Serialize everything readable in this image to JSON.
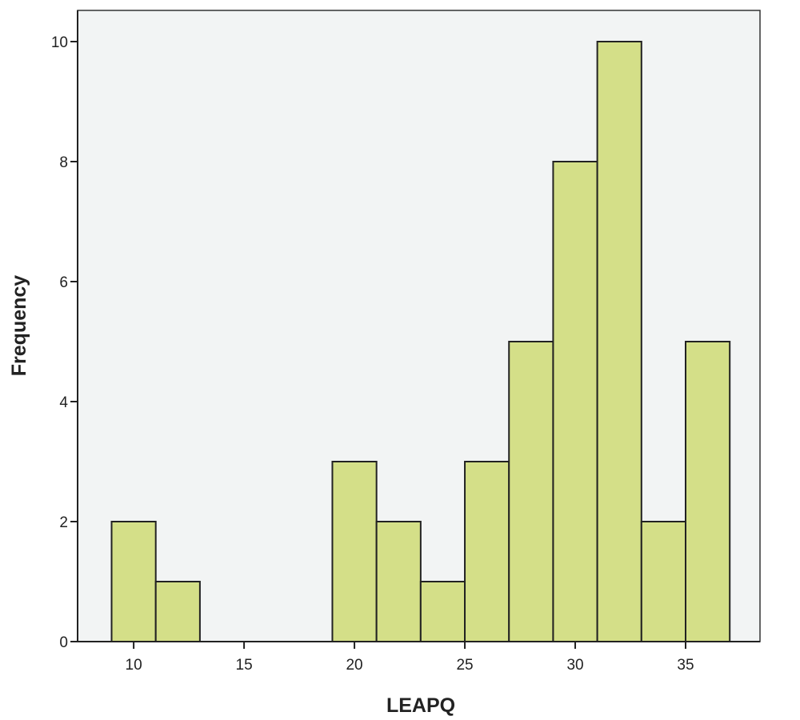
{
  "chart_data": {
    "type": "bar",
    "subtype": "histogram",
    "title": "",
    "xlabel": "LEAPQ",
    "ylabel": "Frequency",
    "bin_width": 2,
    "bins": [
      {
        "start": 9,
        "end": 11,
        "count": 2
      },
      {
        "start": 11,
        "end": 13,
        "count": 1
      },
      {
        "start": 19,
        "end": 21,
        "count": 3
      },
      {
        "start": 21,
        "end": 23,
        "count": 2
      },
      {
        "start": 23,
        "end": 25,
        "count": 1
      },
      {
        "start": 25,
        "end": 27,
        "count": 3
      },
      {
        "start": 27,
        "end": 29,
        "count": 5
      },
      {
        "start": 29,
        "end": 31,
        "count": 8
      },
      {
        "start": 31,
        "end": 33,
        "count": 10
      },
      {
        "start": 33,
        "end": 35,
        "count": 2
      },
      {
        "start": 35,
        "end": 37,
        "count": 5
      }
    ],
    "xlim": [
      7.46,
      38.37
    ],
    "ylim": [
      0,
      10.5
    ],
    "xticks": [
      "10",
      "15",
      "20",
      "25",
      "30",
      "35"
    ],
    "yticks": [
      "0",
      "2",
      "4",
      "6",
      "8",
      "10"
    ],
    "grid": false,
    "colors": {
      "bar": "#d4df88",
      "plot_background": "#f2f4f4",
      "outline": "#222222"
    }
  }
}
